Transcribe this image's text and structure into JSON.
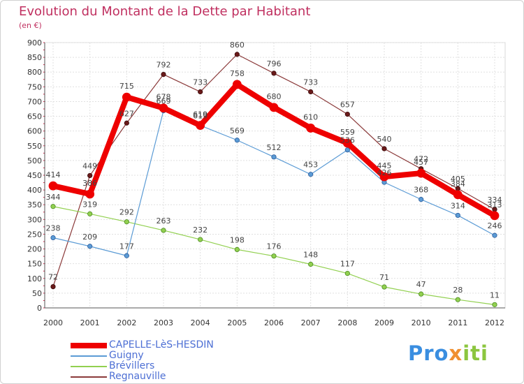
{
  "chart_data": {
    "type": "line",
    "title": "Evolution du Montant de la Dette par Habitant",
    "subtitle": "(en €)",
    "x": [
      "2000",
      "2001",
      "2002",
      "2003",
      "2004",
      "2005",
      "2006",
      "2007",
      "2008",
      "2009",
      "2010",
      "2011",
      "2012"
    ],
    "ylim": [
      0,
      900
    ],
    "yticks": [
      0,
      50,
      100,
      150,
      200,
      250,
      300,
      350,
      400,
      450,
      500,
      550,
      600,
      650,
      700,
      750,
      800,
      850,
      900
    ],
    "grid": true,
    "legend_position": "bottom-left",
    "series": [
      {
        "name": "CAPELLE-LèS-HESDIN",
        "color": "#ee0000",
        "values": [
          414,
          386,
          715,
          678,
          619,
          758,
          680,
          610,
          559,
          445,
          457,
          384,
          313
        ]
      },
      {
        "name": "Guigny",
        "color": "#5b9bd5",
        "values": [
          238,
          209,
          177,
          669,
          619,
          569,
          512,
          453,
          536,
          426,
          368,
          314,
          246
        ]
      },
      {
        "name": "Brévillers",
        "color": "#92d050",
        "values": [
          344,
          319,
          292,
          263,
          232,
          198,
          176,
          148,
          117,
          71,
          47,
          28,
          11
        ]
      },
      {
        "name": "Regnauville",
        "color": "#8b3a3a",
        "values": [
          72,
          449,
          627,
          792,
          733,
          860,
          796,
          733,
          657,
          540,
          472,
          405,
          334
        ]
      }
    ]
  },
  "brand": {
    "p1": "Pro",
    "p2": "x",
    "p3": "iti"
  }
}
